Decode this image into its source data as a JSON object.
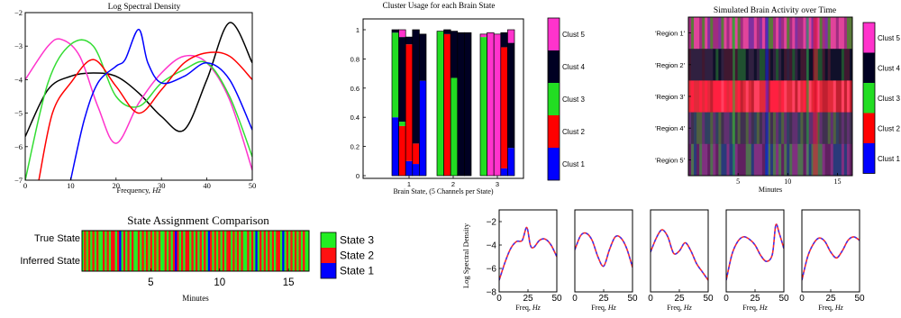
{
  "chart_data": [
    {
      "id": "log_spectral_density",
      "type": "line",
      "title": "Log Spectral Density",
      "xlabel": "Frequency, Hz",
      "ylabel": "",
      "xlim": [
        0,
        50
      ],
      "ylim": [
        -7,
        -2
      ],
      "xticks": [
        "0",
        "10",
        "20",
        "30",
        "40",
        "50"
      ],
      "yticks": [
        "−7",
        "−6",
        "−5",
        "−4",
        "−3",
        "−2"
      ],
      "grid": false,
      "series": [
        {
          "color": "#000000",
          "x": [
            0,
            5,
            10,
            15,
            20,
            25,
            30,
            35,
            40,
            45,
            50
          ],
          "y": [
            -5.7,
            -4.3,
            -3.9,
            -3.8,
            -3.9,
            -4.4,
            -5.1,
            -5.5,
            -4.0,
            -2.3,
            -3.5
          ]
        },
        {
          "color": "#ff33cc",
          "x": [
            0,
            5,
            8,
            12,
            16,
            20,
            25,
            30,
            35,
            40,
            45,
            50
          ],
          "y": [
            -4.0,
            -3.0,
            -2.8,
            -3.3,
            -4.8,
            -5.9,
            -4.7,
            -3.8,
            -3.3,
            -3.5,
            -4.6,
            -6.7
          ]
        },
        {
          "color": "#33dd33",
          "x": [
            0,
            5,
            10,
            15,
            20,
            25,
            30,
            35,
            40,
            45,
            50
          ],
          "y": [
            -7.0,
            -4.1,
            -2.95,
            -3.0,
            -4.5,
            -4.8,
            -4.1,
            -3.7,
            -3.5,
            -4.5,
            -6.3
          ]
        },
        {
          "color": "#ff0000",
          "x": [
            3,
            6,
            10,
            15,
            20,
            25,
            30,
            35,
            40,
            45,
            50
          ],
          "y": [
            -7.0,
            -5.0,
            -4.1,
            -3.4,
            -4.2,
            -5.0,
            -4.3,
            -3.5,
            -3.2,
            -3.3,
            -4.0
          ]
        },
        {
          "color": "#0000ff",
          "x": [
            10,
            13,
            16,
            20,
            22,
            25,
            27,
            30,
            35,
            40,
            45,
            50
          ],
          "y": [
            -7.0,
            -5.2,
            -4.1,
            -3.6,
            -3.4,
            -2.5,
            -3.5,
            -4.1,
            -3.9,
            -3.5,
            -4.0,
            -5.5
          ]
        }
      ]
    },
    {
      "id": "cluster_usage",
      "type": "bar",
      "title": "Cluster Usage for each Brain State",
      "xlabel": "Brain State, (5 Channels per State)",
      "ylabel": "",
      "categories": [
        "1",
        "2",
        "3"
      ],
      "ylim": [
        0,
        1
      ],
      "yticks": [
        "0",
        "0.2",
        "0.4",
        "0.6",
        "0.8",
        "1"
      ],
      "legend": [
        "Clust 5",
        "Clust 4",
        "Clust 3",
        "Clust 2",
        "Clust 1"
      ],
      "colors": [
        "#ff33cc",
        "#000022",
        "#22dd22",
        "#ff0000",
        "#0000ff"
      ],
      "stacks": [
        [
          [
            0.0,
            0.02,
            0.58,
            0.0,
            0.4
          ],
          [
            0.05,
            0.58,
            0.03,
            0.34,
            0.0
          ],
          [
            0.0,
            0.05,
            0.0,
            0.8,
            0.1
          ],
          [
            0.0,
            0.78,
            0.0,
            0.14,
            0.08
          ],
          [
            0.0,
            0.32,
            0.0,
            0.0,
            0.65
          ]
        ],
        [
          [
            0.0,
            0.0,
            0.99,
            0.0,
            0.0
          ],
          [
            0.0,
            0.03,
            0.0,
            0.97,
            0.0
          ],
          [
            0.0,
            0.32,
            0.67,
            0.0,
            0.0
          ],
          [
            0.0,
            0.98,
            0.0,
            0.0,
            0.0
          ],
          [
            0.0,
            0.98,
            0.0,
            0.0,
            0.0
          ]
        ],
        [
          [
            0.02,
            0.0,
            0.95,
            0.0,
            0.0
          ],
          [
            0.98,
            0.0,
            0.0,
            0.0,
            0.0
          ],
          [
            0.97,
            0.0,
            0.0,
            0.0,
            0.0
          ],
          [
            0.0,
            0.1,
            0.0,
            0.83,
            0.05
          ],
          [
            0.09,
            0.72,
            0.0,
            0.0,
            0.19
          ]
        ]
      ]
    },
    {
      "id": "simulated_brain_activity",
      "type": "heatmap",
      "title": "Simulated Brain Activity over Time",
      "xlabel": "Minutes",
      "rows": [
        "'Region 1'",
        "'Region 2'",
        "'Region 3'",
        "'Region 4'",
        "'Region 5'"
      ],
      "xticks": [
        "5",
        "10",
        "15"
      ],
      "xlim": [
        0,
        16.5
      ],
      "legend": [
        "Clust 5",
        "Clust 4",
        "Clust 3",
        "Clust 2",
        "Clust 1"
      ],
      "colors": [
        "#ff33cc",
        "#000022",
        "#22dd22",
        "#ff0000",
        "#0000ff"
      ]
    },
    {
      "id": "state_assignment",
      "type": "heatmap",
      "title": "State Assignment Comparison",
      "xlabel": "Minutes",
      "rows": [
        "True State",
        "Inferred State"
      ],
      "xticks": [
        "5",
        "10",
        "15"
      ],
      "xlim": [
        0,
        16.5
      ],
      "legend": [
        "State 3",
        "State 2",
        "State 1"
      ],
      "colors": [
        "#22ee22",
        "#ff1111",
        "#0000ff"
      ],
      "sequence": [
        3,
        2,
        3,
        2,
        3,
        2,
        3,
        2,
        3,
        3,
        2,
        3,
        2,
        3,
        2,
        2,
        3,
        2,
        1,
        3,
        2,
        3,
        2,
        3,
        2,
        3,
        3,
        2,
        3,
        2,
        3,
        2,
        3,
        2,
        3,
        2,
        3,
        2,
        3,
        3,
        2,
        3,
        2,
        3,
        2,
        1,
        2,
        3,
        2,
        3,
        2,
        2,
        3,
        2,
        3,
        2,
        3,
        2,
        3,
        2,
        3,
        1,
        2,
        3,
        2,
        3,
        2,
        3,
        2,
        3,
        2,
        2,
        3,
        2,
        3,
        2,
        3,
        2,
        3,
        3,
        2,
        3,
        2,
        3,
        1,
        3,
        2,
        3,
        2,
        3,
        2,
        3,
        2,
        3,
        2,
        2,
        3,
        1,
        3,
        2,
        3,
        2,
        3,
        2,
        3,
        2,
        3,
        2,
        3,
        3
      ]
    },
    {
      "id": "small_spectra",
      "type": "line",
      "ylabel": "Log Spectral Density",
      "xlabel": "Freq, Hz",
      "xticks": [
        "0",
        "25",
        "50"
      ],
      "yticks": [
        "−8",
        "−6",
        "−4",
        "−2"
      ],
      "ylim": [
        -8,
        -1
      ],
      "panels": [
        {
          "x": [
            0,
            5,
            10,
            15,
            20,
            24,
            27,
            30,
            35,
            40,
            45,
            50
          ],
          "y": [
            -7.0,
            -5.5,
            -4.3,
            -3.7,
            -3.6,
            -2.5,
            -4.0,
            -4.2,
            -3.6,
            -3.5,
            -4.0,
            -5.0
          ]
        },
        {
          "x": [
            0,
            5,
            10,
            15,
            20,
            25,
            30,
            35,
            40,
            45,
            50
          ],
          "y": [
            -4.4,
            -3.2,
            -3.0,
            -3.6,
            -5.0,
            -5.8,
            -4.4,
            -3.3,
            -3.4,
            -4.3,
            -5.9
          ]
        },
        {
          "x": [
            0,
            5,
            10,
            15,
            20,
            25,
            30,
            35,
            40,
            45,
            50
          ],
          "y": [
            -4.6,
            -3.4,
            -2.7,
            -3.3,
            -4.7,
            -4.5,
            -3.8,
            -4.5,
            -5.6,
            -6.3,
            -7.0
          ]
        },
        {
          "x": [
            0,
            5,
            10,
            15,
            20,
            25,
            30,
            35,
            40,
            43,
            46,
            50
          ],
          "y": [
            -7.0,
            -4.8,
            -3.7,
            -3.3,
            -3.5,
            -4.0,
            -4.9,
            -5.4,
            -4.8,
            -2.3,
            -3.0,
            -4.3
          ]
        },
        {
          "x": [
            0,
            5,
            10,
            15,
            20,
            25,
            30,
            35,
            40,
            45,
            50
          ],
          "y": [
            -7.0,
            -5.0,
            -3.9,
            -3.4,
            -3.7,
            -4.6,
            -5.1,
            -4.5,
            -3.6,
            -3.3,
            -3.6
          ]
        }
      ]
    }
  ]
}
